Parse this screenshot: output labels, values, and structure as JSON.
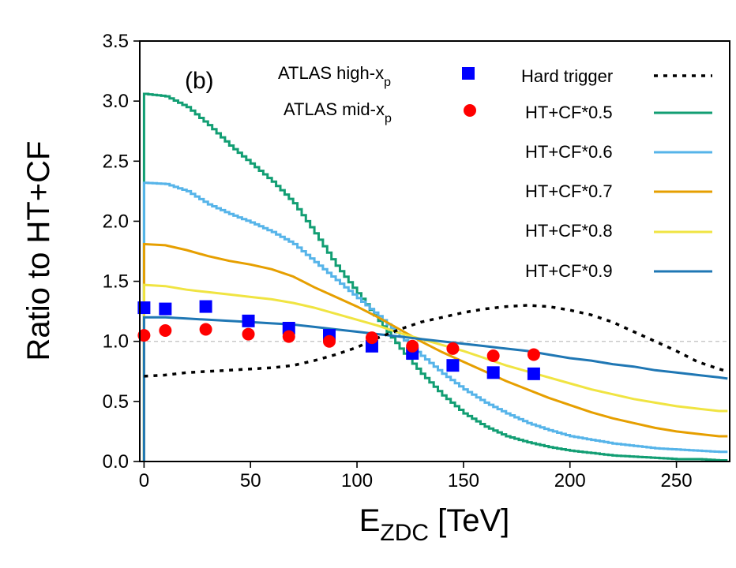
{
  "chart_data": {
    "type": "line",
    "panel_label": "(b)",
    "xlabel": {
      "main": "E",
      "sub": "ZDC",
      "rest": " [TeV]"
    },
    "ylabel": "Ratio to HT+CF",
    "xlim": [
      -2,
      275
    ],
    "ylim": [
      0.0,
      3.5
    ],
    "xticks": [
      0,
      50,
      100,
      150,
      200,
      250
    ],
    "xtick_labels": [
      "0",
      "50",
      "100",
      "150",
      "200",
      "250"
    ],
    "yticks": [
      0.0,
      0.5,
      1.0,
      1.5,
      2.0,
      2.5,
      3.0,
      3.5
    ],
    "ytick_labels": [
      "0.0",
      "0.5",
      "1.0",
      "1.5",
      "2.0",
      "2.5",
      "3.0",
      "3.5"
    ],
    "reference_line": 1.0,
    "grid": false,
    "colors": {
      "hard_trigger": "#000000",
      "cf05": "#129e73",
      "cf06": "#56b4e9",
      "cf07": "#e69f00",
      "cf08": "#f0e442",
      "cf09": "#1f77b4",
      "atlas_high": "#0000ff",
      "atlas_mid": "#ff0000",
      "reference": "#c0c0c0"
    },
    "series": [
      {
        "key": "hard_trigger",
        "name": "Hard trigger",
        "style": "dotted",
        "x": [
          0,
          10,
          20,
          30,
          40,
          50,
          60,
          70,
          80,
          90,
          100,
          110,
          120,
          130,
          140,
          150,
          160,
          170,
          180,
          190,
          200,
          210,
          220,
          230,
          240,
          250,
          260,
          270,
          274
        ],
        "y": [
          0.71,
          0.72,
          0.74,
          0.75,
          0.76,
          0.77,
          0.78,
          0.8,
          0.84,
          0.89,
          0.95,
          1.03,
          1.1,
          1.16,
          1.2,
          1.24,
          1.27,
          1.29,
          1.3,
          1.29,
          1.26,
          1.22,
          1.16,
          1.08,
          1.0,
          0.92,
          0.83,
          0.77,
          0.75
        ]
      },
      {
        "key": "cf05",
        "name": "HT+CF*0.5",
        "style": "step",
        "x": [
          0,
          10,
          20,
          30,
          40,
          50,
          60,
          70,
          80,
          90,
          100,
          110,
          120,
          130,
          140,
          150,
          160,
          170,
          180,
          190,
          200,
          210,
          220,
          230,
          240,
          250,
          260,
          270,
          274
        ],
        "y": [
          3.06,
          3.04,
          2.95,
          2.8,
          2.63,
          2.48,
          2.33,
          2.15,
          1.9,
          1.63,
          1.4,
          1.17,
          0.94,
          0.73,
          0.55,
          0.4,
          0.29,
          0.21,
          0.16,
          0.12,
          0.09,
          0.07,
          0.05,
          0.04,
          0.03,
          0.02,
          0.02,
          0.01,
          0.01
        ]
      },
      {
        "key": "cf06",
        "name": "HT+CF*0.6",
        "style": "step",
        "x": [
          0,
          10,
          20,
          30,
          40,
          50,
          60,
          70,
          80,
          90,
          100,
          110,
          120,
          130,
          140,
          150,
          160,
          170,
          180,
          190,
          200,
          210,
          220,
          230,
          240,
          250,
          260,
          270,
          274
        ],
        "y": [
          2.32,
          2.31,
          2.25,
          2.14,
          2.06,
          1.99,
          1.91,
          1.81,
          1.66,
          1.51,
          1.36,
          1.21,
          1.04,
          0.88,
          0.73,
          0.6,
          0.49,
          0.4,
          0.32,
          0.26,
          0.21,
          0.18,
          0.15,
          0.13,
          0.11,
          0.1,
          0.09,
          0.08,
          0.08
        ]
      },
      {
        "key": "cf07",
        "name": "HT+CF*0.7",
        "style": "line",
        "x": [
          0,
          10,
          20,
          30,
          40,
          50,
          60,
          70,
          80,
          90,
          100,
          110,
          120,
          130,
          140,
          150,
          160,
          170,
          180,
          190,
          200,
          210,
          220,
          230,
          240,
          250,
          260,
          270,
          274
        ],
        "y": [
          1.81,
          1.8,
          1.76,
          1.71,
          1.67,
          1.64,
          1.6,
          1.54,
          1.45,
          1.37,
          1.29,
          1.2,
          1.1,
          1.0,
          0.91,
          0.83,
          0.75,
          0.67,
          0.6,
          0.53,
          0.47,
          0.41,
          0.36,
          0.32,
          0.28,
          0.25,
          0.23,
          0.21,
          0.21
        ]
      },
      {
        "key": "cf08",
        "name": "HT+CF*0.8",
        "style": "line",
        "x": [
          0,
          10,
          20,
          30,
          40,
          50,
          60,
          70,
          80,
          90,
          100,
          110,
          120,
          130,
          140,
          150,
          160,
          170,
          180,
          190,
          200,
          210,
          220,
          230,
          240,
          250,
          260,
          270,
          274
        ],
        "y": [
          1.47,
          1.46,
          1.43,
          1.41,
          1.39,
          1.37,
          1.35,
          1.32,
          1.28,
          1.23,
          1.18,
          1.13,
          1.07,
          1.02,
          0.97,
          0.92,
          0.86,
          0.8,
          0.75,
          0.7,
          0.65,
          0.6,
          0.56,
          0.52,
          0.49,
          0.46,
          0.44,
          0.42,
          0.42
        ]
      },
      {
        "key": "cf09",
        "name": "HT+CF*0.9",
        "style": "line",
        "x": [
          0,
          10,
          20,
          30,
          40,
          50,
          60,
          70,
          80,
          90,
          100,
          110,
          120,
          130,
          140,
          150,
          160,
          170,
          180,
          190,
          200,
          210,
          220,
          230,
          240,
          250,
          260,
          270,
          274
        ],
        "y": [
          1.2,
          1.2,
          1.19,
          1.18,
          1.17,
          1.16,
          1.15,
          1.14,
          1.12,
          1.1,
          1.08,
          1.06,
          1.04,
          1.02,
          1.0,
          0.98,
          0.96,
          0.94,
          0.92,
          0.89,
          0.86,
          0.84,
          0.81,
          0.79,
          0.76,
          0.74,
          0.72,
          0.7,
          0.69
        ]
      }
    ],
    "scatter": [
      {
        "key": "atlas_high",
        "name_main": "ATLAS high-x",
        "name_sub": "p",
        "marker": "square",
        "x": [
          0,
          10,
          29,
          49,
          68,
          87,
          107,
          126,
          145,
          164,
          183
        ],
        "y": [
          1.28,
          1.27,
          1.29,
          1.17,
          1.11,
          1.05,
          0.96,
          0.9,
          0.8,
          0.74,
          0.73
        ]
      },
      {
        "key": "atlas_mid",
        "name_main": "ATLAS mid-x",
        "name_sub": "p",
        "marker": "circle",
        "x": [
          0,
          10,
          29,
          49,
          68,
          87,
          107,
          126,
          145,
          164,
          183
        ],
        "y": [
          1.05,
          1.09,
          1.1,
          1.06,
          1.04,
          1.0,
          1.03,
          0.96,
          0.94,
          0.88,
          0.89
        ]
      }
    ]
  }
}
